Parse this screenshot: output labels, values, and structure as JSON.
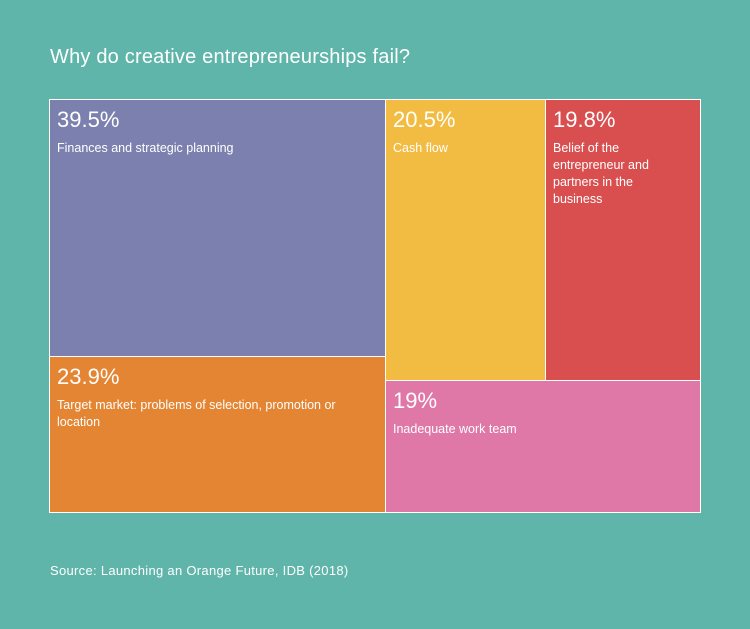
{
  "title": "Why do creative entrepreneurships fail?",
  "source": "Source: Launching an Orange Future, IDB (2018)",
  "chart_data": {
    "type": "treemap",
    "title": "Why do creative entrepreneurships fail?",
    "items": [
      {
        "id": "finances",
        "value_label": "39.5%",
        "value": 39.5,
        "label": "Finances and strategic planning",
        "color": "#7b80ae"
      },
      {
        "id": "target-market",
        "value_label": "23.9%",
        "value": 23.9,
        "label": "Target market: problems of selection, promotion or location",
        "color": "#e38533"
      },
      {
        "id": "cash-flow",
        "value_label": "20.5%",
        "value": 20.5,
        "label": "Cash flow",
        "color": "#f2bc43"
      },
      {
        "id": "belief",
        "value_label": "19.8%",
        "value": 19.8,
        "label": "Belief of the entrepreneur and partners in the business",
        "color": "#d94f50"
      },
      {
        "id": "work-team",
        "value_label": "19%",
        "value": 19,
        "label": "Inadequate work team",
        "color": "#df78a7"
      }
    ]
  }
}
